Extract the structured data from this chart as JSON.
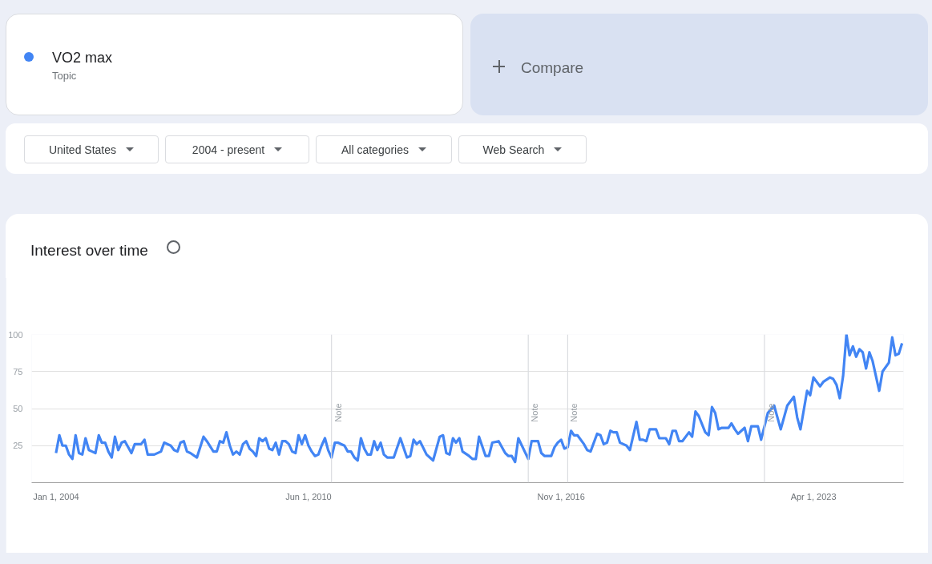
{
  "chart_data": {
    "type": "line",
    "title": "Interest over time",
    "annotations": [
      "Topic",
      "Compare",
      "United States",
      "2004 - present",
      "All categories",
      "Web Search"
    ],
    "legend": "top",
    "grid": "y",
    "line_style": "solid",
    "ylim": [
      0,
      100
    ],
    "yticks": [
      25,
      50,
      75,
      100
    ],
    "xlim": [
      "2003-05-20",
      "2025-07-15"
    ],
    "xticks": [
      {
        "value": "2004-01-01",
        "label": "Jan 1, 2004"
      },
      {
        "value": "2010-06-01",
        "label": "Jun 1, 2010"
      },
      {
        "value": "2016-11-01",
        "label": "Nov 1, 2016"
      },
      {
        "value": "2023-04-01",
        "label": "Apr 1, 2023"
      }
    ],
    "ref_lines": [
      {
        "axis": "x",
        "value": "2011-01-01",
        "label": "Note",
        "color": "#dadce0"
      },
      {
        "axis": "x",
        "value": "2016-01-01",
        "label": "Note",
        "color": "#dadce0"
      },
      {
        "axis": "x",
        "value": "2017-01-01",
        "label": "Note",
        "color": "#dadce0"
      },
      {
        "axis": "x",
        "value": "2022-01-01",
        "label": "Note",
        "color": "#dadce0"
      }
    ],
    "series": [
      {
        "name": "VO2 max",
        "color": "#4285f4",
        "x": [
          "2004-01",
          "2004-02",
          "2004-03",
          "2004-04",
          "2004-05",
          "2004-06",
          "2004-07",
          "2004-08",
          "2004-09",
          "2004-10",
          "2004-11",
          "2004-12",
          "2005-01",
          "2005-02",
          "2005-03",
          "2005-04",
          "2005-05",
          "2005-06",
          "2005-07",
          "2005-08",
          "2005-09",
          "2005-10",
          "2005-12",
          "2006-01",
          "2006-03",
          "2006-04",
          "2006-05",
          "2006-07",
          "2006-09",
          "2006-10",
          "2006-12",
          "2007-01",
          "2007-02",
          "2007-03",
          "2007-04",
          "2007-05",
          "2007-06",
          "2007-08",
          "2007-10",
          "2007-11",
          "2008-01",
          "2008-02",
          "2008-03",
          "2008-04",
          "2008-05",
          "2008-06",
          "2008-07",
          "2008-08",
          "2008-09",
          "2008-10",
          "2008-11",
          "2008-12",
          "2009-01",
          "2009-02",
          "2009-03",
          "2009-04",
          "2009-05",
          "2009-06",
          "2009-07",
          "2009-08",
          "2009-09",
          "2009-10",
          "2009-11",
          "2009-12",
          "2010-01",
          "2010-02",
          "2010-03",
          "2010-04",
          "2010-05",
          "2010-06",
          "2010-07",
          "2010-08",
          "2010-09",
          "2010-10",
          "2010-11",
          "2010-12",
          "2011-01",
          "2011-02",
          "2011-03",
          "2011-05",
          "2011-06",
          "2011-07",
          "2011-08",
          "2011-09",
          "2011-10",
          "2011-11",
          "2011-12",
          "2012-01",
          "2012-02",
          "2012-03",
          "2012-04",
          "2012-05",
          "2012-06",
          "2012-08",
          "2012-10",
          "2012-12",
          "2013-01",
          "2013-02",
          "2013-03",
          "2013-04",
          "2013-06",
          "2013-07",
          "2013-08",
          "2013-10",
          "2013-11",
          "2013-12",
          "2014-01",
          "2014-02",
          "2014-03",
          "2014-04",
          "2014-05",
          "2014-07",
          "2014-08",
          "2014-09",
          "2014-10",
          "2014-12",
          "2015-01",
          "2015-02",
          "2015-04",
          "2015-06",
          "2015-07",
          "2015-08",
          "2015-09",
          "2015-10",
          "2016-01",
          "2016-02",
          "2016-04",
          "2016-05",
          "2016-06",
          "2016-08",
          "2016-09",
          "2016-10",
          "2016-11",
          "2016-12",
          "2017-01",
          "2017-02",
          "2017-03",
          "2017-04",
          "2017-06",
          "2017-07",
          "2017-08",
          "2017-10",
          "2017-11",
          "2017-12",
          "2018-01",
          "2018-02",
          "2018-03",
          "2018-04",
          "2018-05",
          "2018-06",
          "2018-07",
          "2018-08",
          "2018-10",
          "2018-11",
          "2018-12",
          "2019-01",
          "2019-02",
          "2019-04",
          "2019-05",
          "2019-07",
          "2019-08",
          "2019-09",
          "2019-10",
          "2019-11",
          "2019-12",
          "2020-02",
          "2020-03",
          "2020-04",
          "2020-05",
          "2020-07",
          "2020-08",
          "2020-09",
          "2020-10",
          "2020-11",
          "2020-12",
          "2021-02",
          "2021-03",
          "2021-04",
          "2021-05",
          "2021-07",
          "2021-08",
          "2021-09",
          "2021-11",
          "2021-12",
          "2022-02",
          "2022-04",
          "2022-06",
          "2022-08",
          "2022-10",
          "2022-11",
          "2022-12",
          "2023-02",
          "2023-03",
          "2023-04",
          "2023-06",
          "2023-07",
          "2023-09",
          "2023-10",
          "2023-11",
          "2023-12",
          "2024-01",
          "2024-02",
          "2024-03",
          "2024-04",
          "2024-05",
          "2024-06",
          "2024-07",
          "2024-08",
          "2024-09",
          "2024-10",
          "2024-12",
          "2025-01",
          "2025-03",
          "2025-04",
          "2025-05",
          "2025-06",
          "2025-07"
        ],
        "values": [
          20,
          32,
          25,
          25,
          19,
          16,
          32,
          20,
          19,
          30,
          22,
          21,
          20,
          32,
          27,
          27,
          21,
          17,
          31,
          22,
          27,
          28,
          20,
          26,
          26,
          29,
          19,
          19,
          21,
          27,
          25,
          22,
          21,
          27,
          28,
          21,
          20,
          17,
          31,
          28,
          21,
          21,
          28,
          27,
          34,
          25,
          19,
          21,
          19,
          26,
          28,
          23,
          21,
          18,
          30,
          28,
          30,
          23,
          22,
          27,
          19,
          28,
          28,
          26,
          21,
          20,
          32,
          26,
          32,
          25,
          21,
          18,
          19,
          25,
          30,
          22,
          17,
          27,
          27,
          25,
          21,
          21,
          17,
          15,
          30,
          23,
          19,
          19,
          28,
          22,
          27,
          19,
          17,
          17,
          30,
          17,
          18,
          29,
          26,
          28,
          19,
          17,
          15,
          31,
          32,
          20,
          19,
          30,
          27,
          30,
          21,
          18,
          16,
          16,
          31,
          18,
          18,
          27,
          28,
          20,
          18,
          18,
          14,
          30,
          16,
          28,
          28,
          20,
          18,
          18,
          24,
          27,
          29,
          23,
          24,
          35,
          32,
          32,
          26,
          22,
          21,
          33,
          32,
          26,
          27,
          35,
          34,
          34,
          27,
          26,
          25,
          22,
          41,
          29,
          29,
          28,
          36,
          36,
          30,
          30,
          26,
          35,
          35,
          28,
          28,
          34,
          31,
          48,
          45,
          34,
          32,
          51,
          47,
          36,
          37,
          37,
          40,
          36,
          33,
          37,
          28,
          38,
          38,
          29,
          47,
          52,
          36,
          52,
          58,
          44,
          36,
          62,
          59,
          71,
          65,
          68,
          71,
          70,
          66,
          57,
          72,
          100,
          86,
          92,
          85,
          90,
          88,
          77,
          88,
          82,
          62,
          75,
          81,
          98,
          86,
          87,
          94
        ]
      }
    ]
  }
}
